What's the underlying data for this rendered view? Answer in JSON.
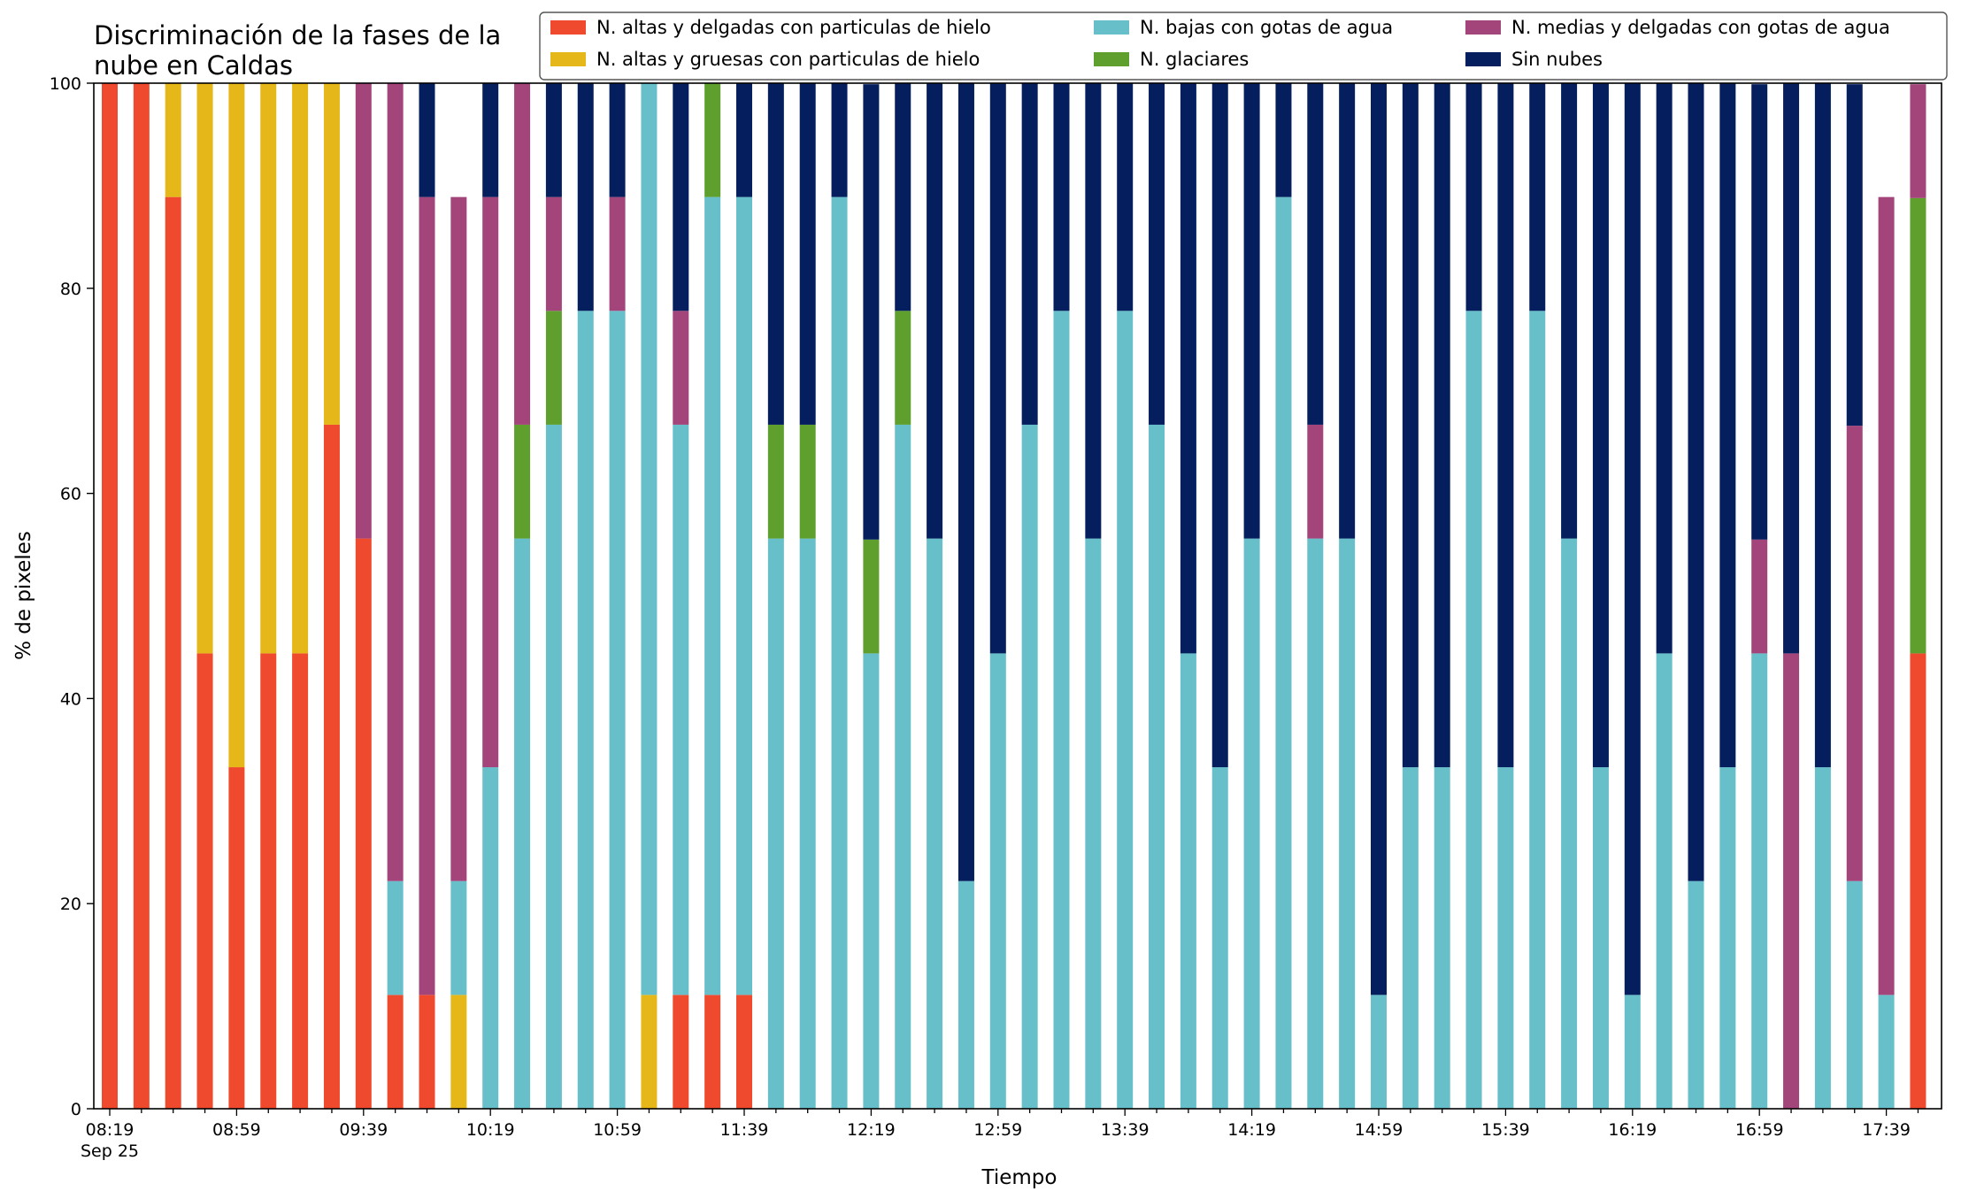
{
  "chart_data": {
    "type": "bar",
    "stacked": true,
    "title_lines": [
      "Discriminación de la fases de la",
      "nube en Caldas"
    ],
    "xlabel": "Tiempo",
    "ylabel": "% de pixeles",
    "ylim": [
      0,
      100
    ],
    "yticks": [
      0,
      20,
      40,
      60,
      80,
      100
    ],
    "grid": false,
    "legend_position": "top-right",
    "categories": [
      "08:19",
      "08:29",
      "08:39",
      "08:49",
      "08:59",
      "09:09",
      "09:19",
      "09:29",
      "09:39",
      "09:49",
      "09:59",
      "10:09",
      "10:19",
      "10:29",
      "10:39",
      "10:49",
      "10:59",
      "11:09",
      "11:19",
      "11:29",
      "11:39",
      "11:49",
      "11:59",
      "12:09",
      "12:19",
      "12:29",
      "12:39",
      "12:49",
      "12:59",
      "13:09",
      "13:19",
      "13:29",
      "13:39",
      "13:49",
      "13:59",
      "14:09",
      "14:19",
      "14:29",
      "14:39",
      "14:49",
      "14:59",
      "15:09",
      "15:19",
      "15:29",
      "15:39",
      "15:49",
      "15:59",
      "16:09",
      "16:19",
      "16:29",
      "16:39",
      "16:49",
      "16:59",
      "17:09",
      "17:19",
      "17:29",
      "17:39",
      "17:49"
    ],
    "x_tick_labels": [
      {
        "index": 0,
        "label": "08:19",
        "sublabel": "Sep 25"
      },
      {
        "index": 4,
        "label": "08:59"
      },
      {
        "index": 8,
        "label": "09:39"
      },
      {
        "index": 12,
        "label": "10:19"
      },
      {
        "index": 16,
        "label": "10:59"
      },
      {
        "index": 20,
        "label": "11:39"
      },
      {
        "index": 24,
        "label": "12:19"
      },
      {
        "index": 28,
        "label": "12:59"
      },
      {
        "index": 32,
        "label": "13:39"
      },
      {
        "index": 36,
        "label": "14:19"
      },
      {
        "index": 40,
        "label": "14:59"
      },
      {
        "index": 44,
        "label": "15:39"
      },
      {
        "index": 48,
        "label": "16:19"
      },
      {
        "index": 52,
        "label": "16:59"
      },
      {
        "index": 56,
        "label": "17:39"
      }
    ],
    "series": [
      {
        "name": "N. altas y delgadas con particulas de hielo",
        "color": "#ef4a2d",
        "values": [
          100,
          100,
          88.9,
          44.4,
          33.3,
          44.4,
          44.4,
          66.7,
          55.6,
          11.1,
          11.1,
          0,
          0,
          0,
          0,
          0,
          0,
          0,
          11.1,
          11.1,
          11.1,
          0,
          0,
          0,
          0,
          0,
          0,
          0,
          0,
          0,
          0,
          0,
          0,
          0,
          0,
          0,
          0,
          0,
          0,
          0,
          0,
          0,
          0,
          0,
          0,
          0,
          0,
          0,
          0,
          0,
          0,
          0,
          0,
          0,
          0,
          0,
          0,
          44.4
        ]
      },
      {
        "name": "N. altas y gruesas con particulas de hielo",
        "color": "#e5b718",
        "values": [
          0,
          0,
          11.1,
          55.6,
          66.7,
          55.6,
          55.6,
          33.3,
          0,
          0,
          0,
          11.1,
          0,
          0,
          0,
          0,
          0,
          11.1,
          0,
          0,
          0,
          0,
          0,
          0,
          0,
          0,
          0,
          0,
          0,
          0,
          0,
          0,
          0,
          0,
          0,
          0,
          0,
          0,
          0,
          0,
          0,
          0,
          0,
          0,
          0,
          0,
          0,
          0,
          0,
          0,
          0,
          0,
          0,
          0,
          0,
          0,
          0,
          0
        ]
      },
      {
        "name": "N. bajas con gotas de agua",
        "color": "#66bfc9",
        "values": [
          0,
          0,
          0,
          0,
          0,
          0,
          0,
          0,
          0,
          11.1,
          0,
          11.1,
          33.3,
          55.6,
          66.7,
          77.8,
          77.8,
          88.9,
          55.6,
          77.8,
          77.8,
          55.6,
          55.6,
          88.9,
          44.4,
          66.7,
          55.6,
          22.2,
          44.4,
          66.7,
          77.8,
          55.6,
          77.8,
          66.7,
          44.4,
          33.3,
          55.6,
          88.9,
          55.6,
          55.6,
          11.1,
          33.3,
          33.3,
          77.8,
          33.3,
          77.8,
          55.6,
          33.3,
          11.1,
          44.4,
          22.2,
          33.3,
          44.4,
          0,
          33.3,
          22.2,
          11.1,
          0
        ]
      },
      {
        "name": "N. glaciares",
        "color": "#5e9f2e",
        "values": [
          0,
          0,
          0,
          0,
          0,
          0,
          0,
          0,
          0,
          0,
          0,
          0,
          0,
          11.1,
          11.1,
          0,
          0,
          0,
          0,
          11.1,
          0,
          11.1,
          11.1,
          0,
          11.1,
          11.1,
          0,
          0,
          0,
          0,
          0,
          0,
          0,
          0,
          0,
          0,
          0,
          0,
          0,
          0,
          0,
          0,
          0,
          0,
          0,
          0,
          0,
          0,
          0,
          0,
          0,
          0,
          0,
          0,
          0,
          0,
          0,
          44.4
        ]
      },
      {
        "name": "N. medias y delgadas con gotas de agua",
        "color": "#a3457a",
        "values": [
          0,
          0,
          0,
          0,
          0,
          0,
          0,
          0,
          44.4,
          77.8,
          77.8,
          66.7,
          55.6,
          33.3,
          11.1,
          0,
          11.1,
          0,
          11.1,
          0,
          0,
          0,
          0,
          0,
          0,
          0,
          0,
          0,
          0,
          0,
          0,
          0,
          0,
          0,
          0,
          0,
          0,
          0,
          11.1,
          0,
          0,
          0,
          0,
          0,
          0,
          0,
          0,
          0,
          0,
          0,
          0,
          0,
          11.1,
          44.4,
          0,
          44.4,
          77.8,
          11.1
        ]
      },
      {
        "name": "Sin nubes",
        "color": "#041e5e",
        "values": [
          0,
          0,
          0,
          0,
          0,
          0,
          0,
          0,
          0,
          0,
          11.1,
          0,
          11.1,
          0,
          11.1,
          22.2,
          11.1,
          0,
          22.2,
          0,
          11.1,
          33.3,
          33.3,
          11.1,
          44.4,
          22.2,
          44.4,
          77.8,
          55.6,
          33.3,
          22.2,
          44.4,
          22.2,
          33.3,
          55.6,
          66.7,
          44.4,
          11.1,
          33.3,
          44.4,
          88.9,
          66.7,
          66.7,
          22.2,
          66.7,
          22.2,
          44.4,
          66.7,
          88.9,
          55.6,
          77.8,
          66.7,
          44.4,
          55.6,
          66.7,
          33.3,
          0,
          0
        ]
      }
    ]
  }
}
